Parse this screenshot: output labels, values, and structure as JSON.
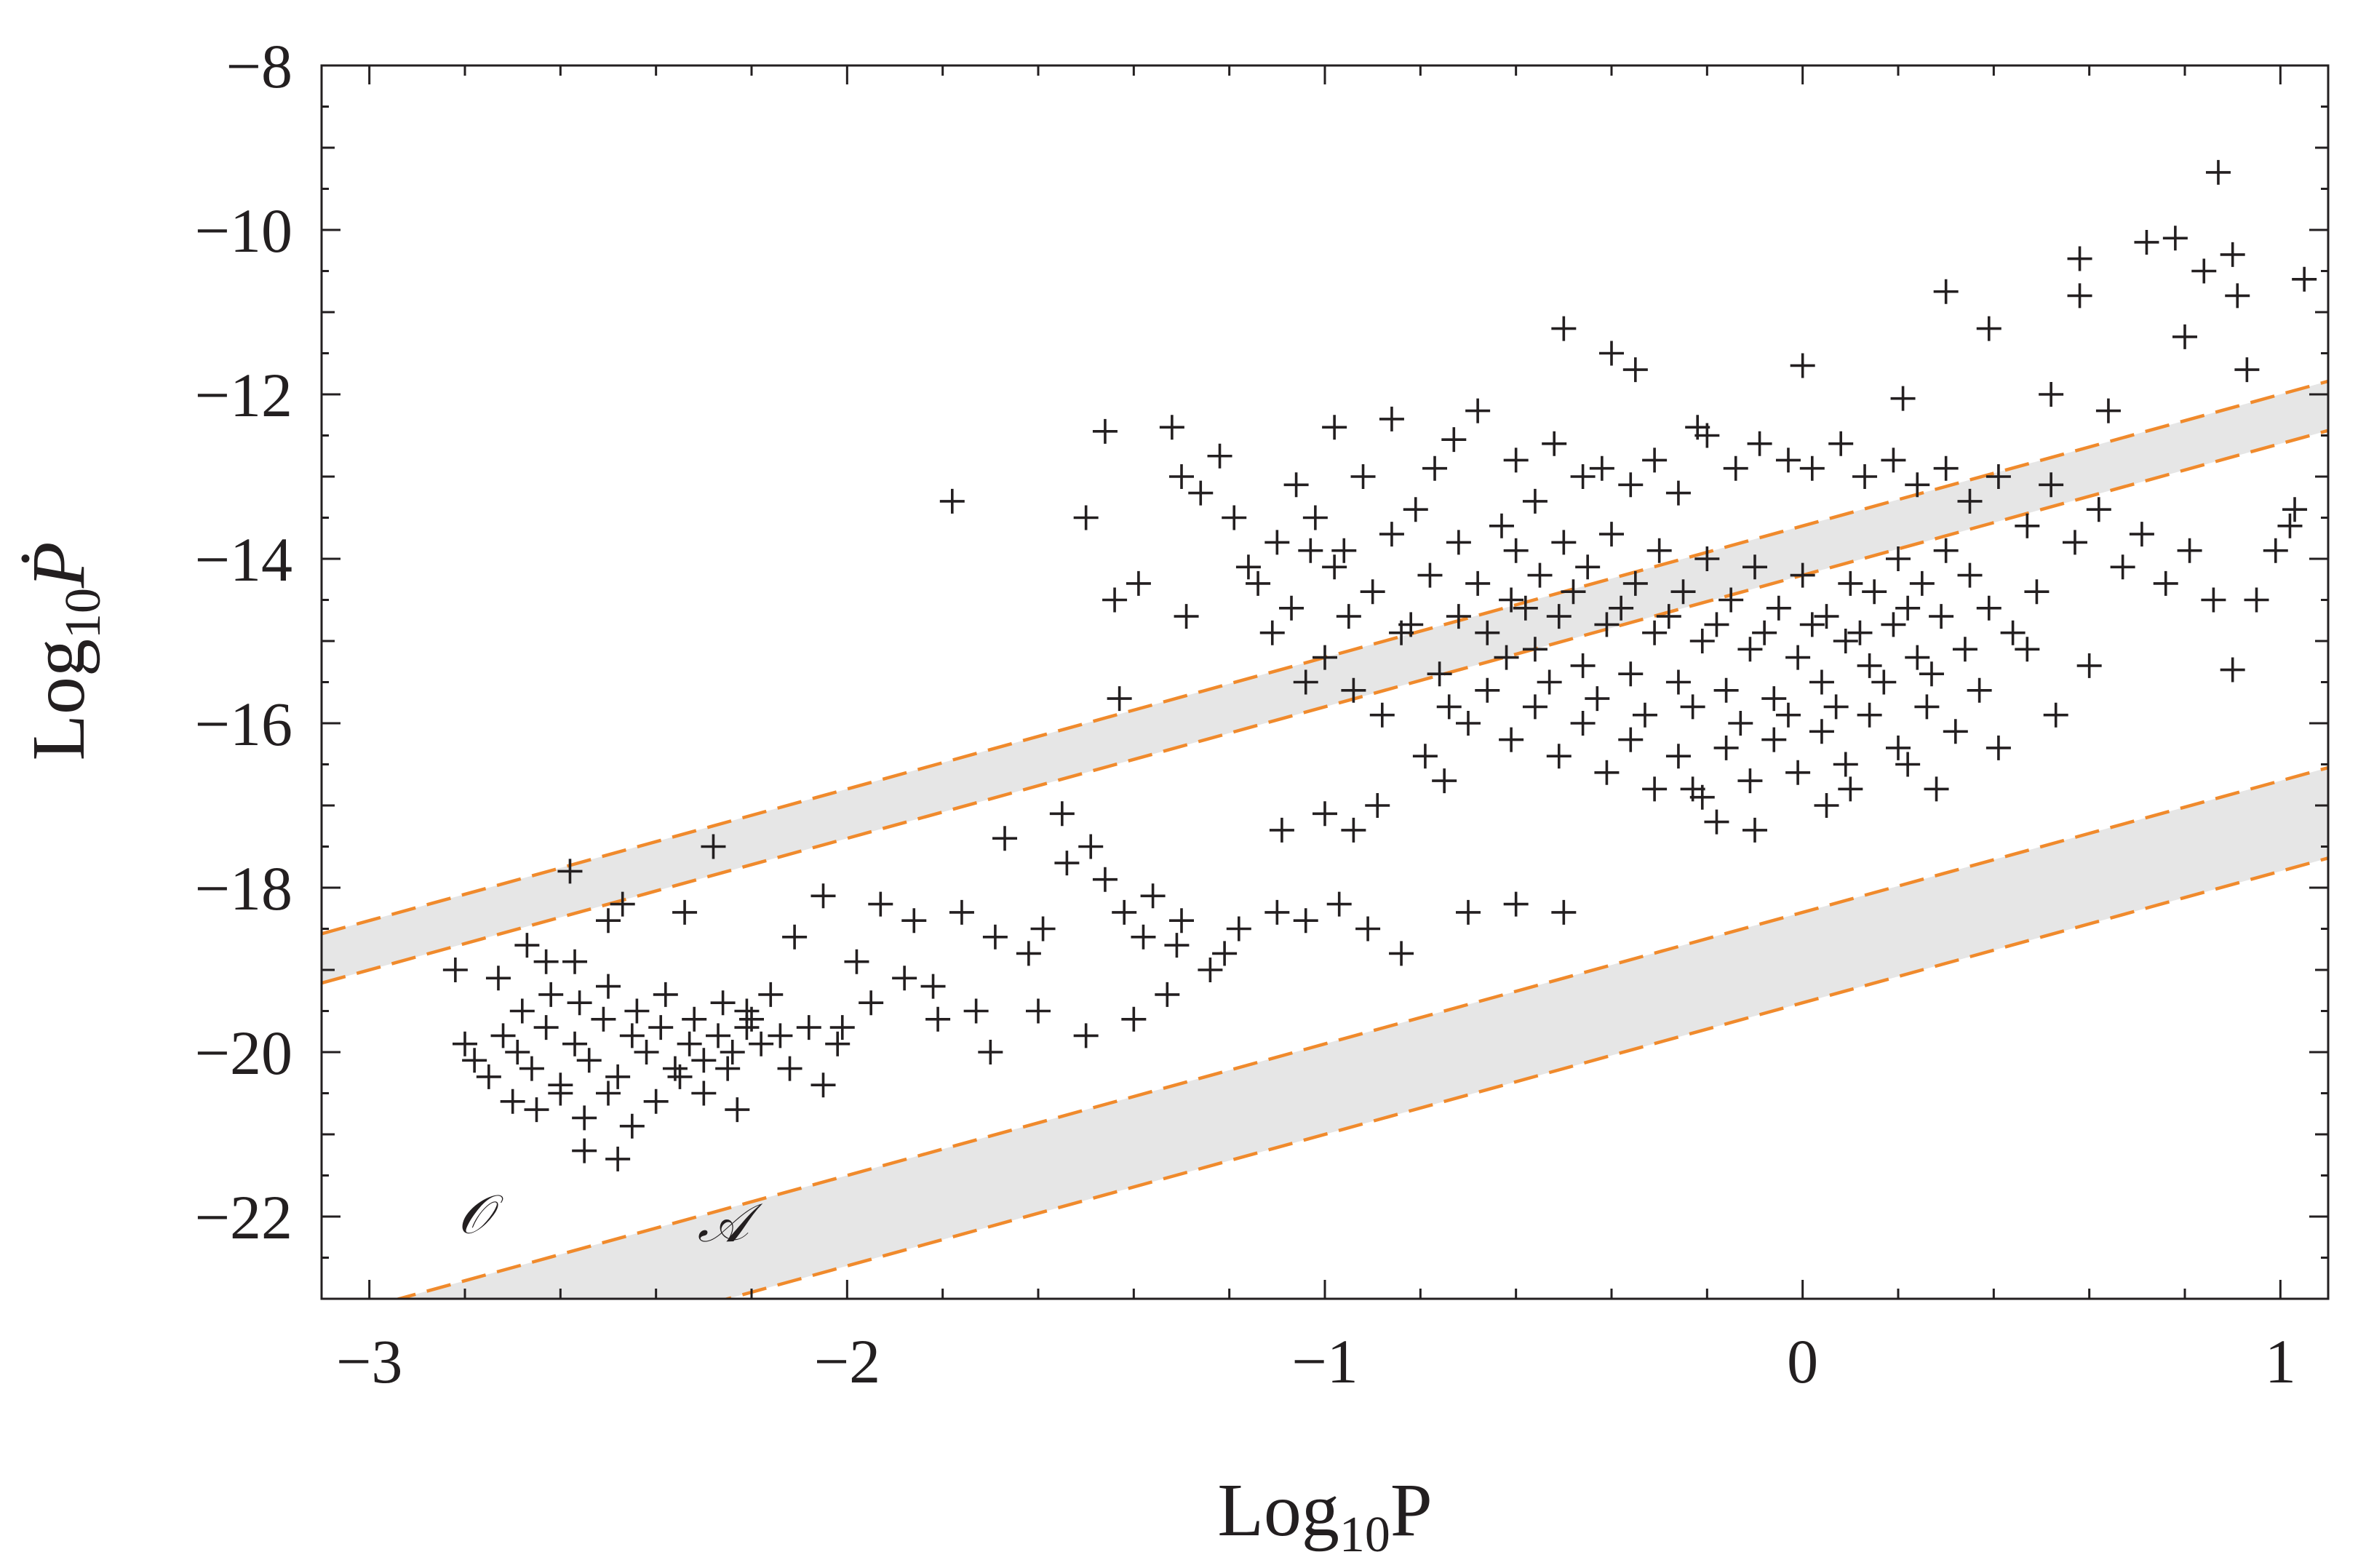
{
  "chart_data": {
    "type": "scatter",
    "title": "",
    "xlabel": {
      "base": "Log",
      "sub": "10",
      "var": "P"
    },
    "ylabel": {
      "base": "Log",
      "sub": "10",
      "var": "Ṗ"
    },
    "xlim": [
      -3.1,
      1.1
    ],
    "ylim": [
      -23,
      -8
    ],
    "x_ticks": [
      {
        "value": -3,
        "label": "−3"
      },
      {
        "value": -2,
        "label": "−2"
      },
      {
        "value": -1,
        "label": "−1"
      },
      {
        "value": 0,
        "label": "0"
      },
      {
        "value": 1,
        "label": "1"
      }
    ],
    "y_ticks": [
      {
        "value": -8,
        "label": "−8"
      },
      {
        "value": -10,
        "label": "−10"
      },
      {
        "value": -12,
        "label": "−12"
      },
      {
        "value": -14,
        "label": "−14"
      },
      {
        "value": -16,
        "label": "−16"
      },
      {
        "value": -18,
        "label": "−18"
      },
      {
        "value": -20,
        "label": "−20"
      },
      {
        "value": -22,
        "label": "−22"
      }
    ],
    "grid": false,
    "marker": "plus",
    "marker_color": "#231f20",
    "band_fill": "#e6e6e6",
    "band_line_color": "#f08a2c",
    "bands": [
      {
        "label": "𝒪",
        "label_pos": [
          -2.78,
          -22.2
        ],
        "slope": 1.6,
        "upper_intercept": -18.3,
        "lower_intercept": -19.4
      },
      {
        "label": "𝒜",
        "label_pos": [
          -2.26,
          -22.3
        ],
        "slope": 1.6,
        "upper_intercept": -13.6,
        "lower_intercept": -14.2
      }
    ],
    "points": [
      [
        -1.78,
        -13.3
      ],
      [
        -1.5,
        -13.5
      ],
      [
        -1.46,
        -12.45
      ],
      [
        -1.44,
        -14.5
      ],
      [
        -1.43,
        -15.7
      ],
      [
        -1.39,
        -14.3
      ],
      [
        -1.32,
        -12.4
      ],
      [
        -1.3,
        -13.0
      ],
      [
        -1.29,
        -14.7
      ],
      [
        -1.26,
        -13.2
      ],
      [
        -1.22,
        -12.75
      ],
      [
        -1.19,
        -13.5
      ],
      [
        -1.16,
        -14.1
      ],
      [
        -0.98,
        -12.4
      ],
      [
        -0.86,
        -12.3
      ],
      [
        -0.73,
        -12.55
      ],
      [
        -0.68,
        -12.2
      ],
      [
        -0.5,
        -11.2
      ],
      [
        -0.4,
        -11.5
      ],
      [
        -0.35,
        -11.7
      ],
      [
        -0.22,
        -12.4
      ],
      [
        0.0,
        -11.65
      ],
      [
        0.21,
        -12.05
      ],
      [
        0.3,
        -10.75
      ],
      [
        0.39,
        -11.2
      ],
      [
        0.52,
        -12.0
      ],
      [
        0.58,
        -10.35
      ],
      [
        0.58,
        -10.8
      ],
      [
        0.64,
        -12.2
      ],
      [
        0.72,
        -10.15
      ],
      [
        0.78,
        -10.1
      ],
      [
        0.8,
        -11.3
      ],
      [
        0.84,
        -10.5
      ],
      [
        0.87,
        -9.3
      ],
      [
        0.9,
        -10.3
      ],
      [
        0.91,
        -10.8
      ],
      [
        0.93,
        -11.7
      ],
      [
        0.9,
        -15.35
      ],
      [
        0.95,
        -14.5
      ],
      [
        0.99,
        -13.9
      ],
      [
        1.03,
        -13.4
      ],
      [
        1.05,
        -10.6
      ],
      [
        1.02,
        -13.6
      ],
      [
        -0.23,
        -16.8
      ],
      [
        -0.18,
        -17.2
      ],
      [
        -0.1,
        -17.3
      ],
      [
        0.05,
        -17.0
      ],
      [
        0.1,
        -16.8
      ],
      [
        0.22,
        -16.5
      ],
      [
        0.28,
        -16.8
      ],
      [
        -0.5,
        -18.3
      ],
      [
        -0.6,
        -18.2
      ],
      [
        -0.7,
        -18.3
      ],
      [
        -0.84,
        -18.8
      ],
      [
        -0.91,
        -18.5
      ],
      [
        -0.97,
        -18.2
      ],
      [
        -1.04,
        -18.4
      ],
      [
        -1.1,
        -18.3
      ],
      [
        -1.18,
        -18.5
      ],
      [
        -1.21,
        -18.8
      ],
      [
        -1.24,
        -19.0
      ],
      [
        -1.31,
        -18.7
      ],
      [
        -1.38,
        -18.6
      ],
      [
        -1.42,
        -18.3
      ],
      [
        -1.49,
        -17.5
      ],
      [
        -1.54,
        -17.7
      ],
      [
        -1.55,
        -17.1
      ],
      [
        -1.46,
        -17.9
      ],
      [
        -1.36,
        -18.1
      ],
      [
        -1.3,
        -18.4
      ],
      [
        -1.59,
        -18.5
      ],
      [
        -1.62,
        -18.8
      ],
      [
        -1.67,
        -17.4
      ],
      [
        -1.69,
        -18.6
      ],
      [
        -1.73,
        -19.5
      ],
      [
        -1.76,
        -18.3
      ],
      [
        -1.82,
        -19.2
      ],
      [
        -1.86,
        -18.4
      ],
      [
        -1.93,
        -18.2
      ],
      [
        -1.98,
        -18.9
      ],
      [
        -2.05,
        -18.1
      ],
      [
        -2.11,
        -18.6
      ],
      [
        -2.16,
        -19.3
      ],
      [
        -2.21,
        -19.5
      ],
      [
        -2.05,
        -20.4
      ],
      [
        -2.01,
        -19.7
      ],
      [
        -1.95,
        -19.4
      ],
      [
        -1.88,
        -19.1
      ],
      [
        -1.81,
        -19.6
      ],
      [
        -1.7,
        -20.0
      ],
      [
        -1.6,
        -19.5
      ],
      [
        -1.5,
        -19.8
      ],
      [
        -1.4,
        -19.6
      ],
      [
        -1.33,
        -19.3
      ],
      [
        -2.82,
        -19.0
      ],
      [
        -2.73,
        -19.1
      ],
      [
        -2.67,
        -18.7
      ],
      [
        -2.58,
        -17.8
      ],
      [
        -2.57,
        -18.9
      ],
      [
        -2.5,
        -18.4
      ],
      [
        -2.47,
        -18.2
      ],
      [
        -2.28,
        -17.5
      ],
      [
        -2.34,
        -18.3
      ],
      [
        -2.63,
        -18.9
      ],
      [
        -2.55,
        -21.2
      ],
      [
        -2.48,
        -21.3
      ],
      [
        -2.23,
        -20.7
      ],
      [
        -2.12,
        -20.2
      ],
      [
        -1.0,
        -17.1
      ],
      [
        -0.94,
        -17.3
      ],
      [
        -1.09,
        -17.3
      ],
      [
        -0.89,
        -17.0
      ],
      [
        -0.79,
        -16.4
      ],
      [
        -0.75,
        -16.7
      ],
      [
        -0.74,
        -15.8
      ],
      [
        -0.76,
        -15.4
      ],
      [
        -0.82,
        -14.8
      ],
      [
        -0.88,
        -15.9
      ],
      [
        -0.94,
        -15.6
      ],
      [
        -1.04,
        -15.5
      ],
      [
        -1.0,
        -15.2
      ],
      [
        -1.07,
        -14.6
      ],
      [
        -1.11,
        -14.9
      ],
      [
        -1.14,
        -14.3
      ],
      [
        -1.1,
        -13.8
      ],
      [
        -1.06,
        -13.1
      ],
      [
        -1.02,
        -13.5
      ],
      [
        -0.96,
        -13.9
      ],
      [
        -0.92,
        -13.0
      ],
      [
        -0.86,
        -13.7
      ],
      [
        -0.81,
        -13.4
      ],
      [
        -0.77,
        -12.9
      ],
      [
        -0.72,
        -13.8
      ],
      [
        -0.68,
        -14.3
      ],
      [
        -0.63,
        -13.6
      ],
      [
        -0.6,
        -12.8
      ],
      [
        -0.56,
        -13.3
      ],
      [
        -0.52,
        -12.6
      ],
      [
        -0.46,
        -13.0
      ],
      [
        -0.42,
        -12.9
      ],
      [
        -0.36,
        -13.1
      ],
      [
        -0.31,
        -12.8
      ],
      [
        -0.26,
        -13.2
      ],
      [
        -0.2,
        -12.5
      ],
      [
        -0.14,
        -12.9
      ],
      [
        -0.09,
        -12.6
      ],
      [
        -0.03,
        -12.8
      ],
      [
        0.02,
        -12.9
      ],
      [
        0.08,
        -12.6
      ],
      [
        0.13,
        -13.0
      ],
      [
        0.19,
        -12.8
      ],
      [
        0.24,
        -13.1
      ],
      [
        0.3,
        -12.9
      ],
      [
        0.35,
        -13.3
      ],
      [
        0.41,
        -13.0
      ],
      [
        0.47,
        -13.6
      ],
      [
        0.52,
        -13.1
      ],
      [
        0.57,
        -13.8
      ],
      [
        0.62,
        -13.4
      ],
      [
        0.67,
        -14.1
      ],
      [
        0.71,
        -13.7
      ],
      [
        0.76,
        -14.3
      ],
      [
        0.81,
        -13.9
      ],
      [
        0.86,
        -14.5
      ],
      [
        0.6,
        -15.3
      ],
      [
        0.53,
        -15.9
      ],
      [
        0.47,
        -15.1
      ],
      [
        0.41,
        -16.3
      ],
      [
        0.37,
        -15.6
      ],
      [
        0.32,
        -16.1
      ],
      [
        0.26,
        -15.8
      ],
      [
        0.2,
        -16.3
      ],
      [
        0.14,
        -15.9
      ],
      [
        0.09,
        -16.5
      ],
      [
        0.04,
        -16.1
      ],
      [
        -0.01,
        -16.6
      ],
      [
        -0.06,
        -16.2
      ],
      [
        -0.11,
        -16.7
      ],
      [
        -0.16,
        -16.3
      ],
      [
        -0.21,
        -16.9
      ],
      [
        -0.26,
        -16.4
      ],
      [
        -0.31,
        -16.8
      ],
      [
        -0.36,
        -16.2
      ],
      [
        -0.41,
        -16.6
      ],
      [
        -0.46,
        -16.0
      ],
      [
        -0.51,
        -16.4
      ],
      [
        -0.56,
        -15.8
      ],
      [
        -0.61,
        -16.2
      ],
      [
        -0.66,
        -15.6
      ],
      [
        -0.7,
        -16.0
      ],
      [
        -0.66,
        -14.9
      ],
      [
        -0.61,
        -14.5
      ],
      [
        -0.56,
        -15.1
      ],
      [
        -0.51,
        -14.7
      ],
      [
        -0.46,
        -15.3
      ],
      [
        -0.41,
        -14.8
      ],
      [
        -0.36,
        -15.4
      ],
      [
        -0.31,
        -14.9
      ],
      [
        -0.26,
        -15.5
      ],
      [
        -0.21,
        -15.0
      ],
      [
        -0.16,
        -15.6
      ],
      [
        -0.11,
        -15.1
      ],
      [
        -0.06,
        -15.7
      ],
      [
        -0.01,
        -15.2
      ],
      [
        0.04,
        -15.5
      ],
      [
        0.09,
        -15.0
      ],
      [
        0.14,
        -15.3
      ],
      [
        0.19,
        -14.8
      ],
      [
        0.24,
        -15.2
      ],
      [
        0.29,
        -14.7
      ],
      [
        0.34,
        -15.1
      ],
      [
        0.39,
        -14.6
      ],
      [
        0.44,
        -14.9
      ],
      [
        0.49,
        -14.4
      ],
      [
        -0.6,
        -13.9
      ],
      [
        -0.55,
        -14.2
      ],
      [
        -0.5,
        -13.8
      ],
      [
        -0.45,
        -14.1
      ],
      [
        -0.4,
        -13.7
      ],
      [
        -0.35,
        -14.3
      ],
      [
        -0.3,
        -13.9
      ],
      [
        -0.25,
        -14.4
      ],
      [
        -0.2,
        -14.0
      ],
      [
        -0.15,
        -14.5
      ],
      [
        -0.1,
        -14.1
      ],
      [
        -0.05,
        -14.6
      ],
      [
        0.0,
        -14.2
      ],
      [
        0.05,
        -14.7
      ],
      [
        0.1,
        -14.3
      ],
      [
        0.15,
        -14.4
      ],
      [
        0.2,
        -14.0
      ],
      [
        0.25,
        -14.3
      ],
      [
        0.3,
        -13.9
      ],
      [
        0.35,
        -14.2
      ],
      [
        -0.58,
        -14.6
      ],
      [
        -0.48,
        -14.4
      ],
      [
        -0.38,
        -14.6
      ],
      [
        -0.28,
        -14.7
      ],
      [
        -0.18,
        -14.8
      ],
      [
        -0.08,
        -14.9
      ],
      [
        0.02,
        -14.8
      ],
      [
        0.12,
        -14.9
      ],
      [
        0.22,
        -14.6
      ],
      [
        -0.53,
        -15.5
      ],
      [
        -0.43,
        -15.7
      ],
      [
        -0.33,
        -15.9
      ],
      [
        -0.23,
        -15.8
      ],
      [
        -0.13,
        -16.0
      ],
      [
        -0.03,
        -15.9
      ],
      [
        0.07,
        -15.8
      ],
      [
        0.17,
        -15.5
      ],
      [
        0.27,
        -15.4
      ],
      [
        -0.62,
        -15.2
      ],
      [
        -0.72,
        -14.7
      ],
      [
        -0.78,
        -14.2
      ],
      [
        -0.84,
        -14.9
      ],
      [
        -0.9,
        -14.4
      ],
      [
        -0.95,
        -14.7
      ],
      [
        -0.98,
        -14.1
      ],
      [
        -1.03,
        -13.9
      ],
      [
        -2.8,
        -19.9
      ],
      [
        -2.78,
        -20.1
      ],
      [
        -2.75,
        -20.3
      ],
      [
        -2.72,
        -19.8
      ],
      [
        -2.69,
        -20.0
      ],
      [
        -2.66,
        -20.2
      ],
      [
        -2.63,
        -19.7
      ],
      [
        -2.6,
        -20.5
      ],
      [
        -2.57,
        -19.9
      ],
      [
        -2.54,
        -20.1
      ],
      [
        -2.51,
        -19.6
      ],
      [
        -2.48,
        -20.3
      ],
      [
        -2.45,
        -19.8
      ],
      [
        -2.42,
        -20.0
      ],
      [
        -2.39,
        -19.7
      ],
      [
        -2.36,
        -20.2
      ],
      [
        -2.33,
        -19.9
      ],
      [
        -2.3,
        -20.1
      ],
      [
        -2.27,
        -19.8
      ],
      [
        -2.24,
        -20.0
      ],
      [
        -2.21,
        -19.7
      ],
      [
        -2.18,
        -19.9
      ],
      [
        -2.7,
        -20.6
      ],
      [
        -2.65,
        -20.7
      ],
      [
        -2.6,
        -20.4
      ],
      [
        -2.55,
        -20.8
      ],
      [
        -2.5,
        -20.5
      ],
      [
        -2.45,
        -20.9
      ],
      [
        -2.4,
        -20.6
      ],
      [
        -2.35,
        -20.3
      ],
      [
        -2.3,
        -20.5
      ],
      [
        -2.25,
        -20.2
      ],
      [
        -2.68,
        -19.5
      ],
      [
        -2.62,
        -19.3
      ],
      [
        -2.56,
        -19.4
      ],
      [
        -2.5,
        -19.2
      ],
      [
        -2.44,
        -19.5
      ],
      [
        -2.38,
        -19.3
      ],
      [
        -2.32,
        -19.6
      ],
      [
        -2.26,
        -19.4
      ],
      [
        -2.2,
        -19.6
      ],
      [
        -2.14,
        -19.8
      ],
      [
        -2.08,
        -19.7
      ],
      [
        -2.02,
        -19.9
      ]
    ]
  }
}
